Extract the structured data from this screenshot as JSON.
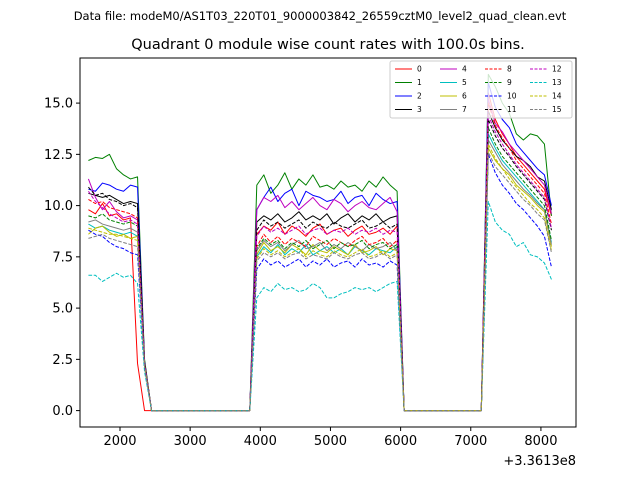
{
  "header": {
    "data_file": "Data file: modeM0/AS1T03_220T01_9000003842_26559cztM0_level2_quad_clean.evt"
  },
  "chart_data": {
    "type": "line",
    "title": "Quadrant 0 module wise count rates with 100.0s bins.",
    "xlabel": "",
    "ylabel": "",
    "x_offset_label": "+3.3613e8",
    "xlim": [
      1430,
      8500
    ],
    "ylim": [
      -0.8,
      17.2
    ],
    "xticks": [
      2000,
      3000,
      4000,
      5000,
      6000,
      7000,
      8000
    ],
    "xtick_labels": [
      "2000",
      "3000",
      "4000",
      "5000",
      "6000",
      "7000",
      "8000"
    ],
    "yticks": [
      0.0,
      2.5,
      5.0,
      7.5,
      10.0,
      12.5,
      15.0
    ],
    "ytick_labels": [
      "0.0",
      "2.5",
      "5.0",
      "7.5",
      "10.0",
      "12.5",
      "15.0"
    ],
    "grid": false,
    "legend_position": "top-right",
    "legend_columns": 4,
    "x": [
      1550,
      1650,
      1750,
      1850,
      1950,
      2050,
      2150,
      2250,
      2350,
      2450,
      2550,
      2650,
      2750,
      2850,
      2950,
      3050,
      3150,
      3250,
      3350,
      3450,
      3550,
      3650,
      3750,
      3850,
      3950,
      4050,
      4150,
      4250,
      4350,
      4450,
      4550,
      4650,
      4750,
      4850,
      4950,
      5050,
      5150,
      5250,
      5350,
      5450,
      5550,
      5650,
      5750,
      5850,
      5950,
      6050,
      6150,
      6250,
      6350,
      6450,
      6550,
      6650,
      6750,
      6850,
      6950,
      7050,
      7150,
      7250,
      7350,
      7450,
      7550,
      7650,
      7750,
      7850,
      7950,
      8050,
      8150
    ],
    "series": [
      {
        "name": "0",
        "color": "#ff0000",
        "dash": "solid",
        "values": [
          9.8,
          9.6,
          10.1,
          9.5,
          9.6,
          9.3,
          9.4,
          2.3,
          0,
          0,
          0,
          0,
          0,
          0,
          0,
          0,
          0,
          0,
          0,
          0,
          0,
          0,
          0,
          0,
          8.6,
          9.0,
          8.8,
          9.2,
          8.6,
          9.0,
          8.8,
          8.5,
          8.9,
          9.1,
          8.6,
          8.8,
          8.9,
          8.5,
          8.8,
          9.0,
          8.6,
          8.7,
          8.9,
          8.6,
          9.0,
          0,
          0,
          0,
          0,
          0,
          0,
          0,
          0,
          0,
          0,
          0,
          0,
          15.5,
          14.2,
          13.5,
          13.0,
          12.4,
          12.0,
          11.6,
          11.2,
          10.8,
          9.5
        ]
      },
      {
        "name": "1",
        "color": "#008000",
        "dash": "solid",
        "values": [
          12.2,
          12.35,
          12.3,
          12.5,
          11.8,
          11.5,
          11.3,
          11.4,
          2.5,
          0,
          0,
          0,
          0,
          0,
          0,
          0,
          0,
          0,
          0,
          0,
          0,
          0,
          0,
          0,
          11.0,
          11.5,
          10.6,
          11.0,
          11.6,
          10.8,
          11.3,
          11.0,
          11.5,
          10.9,
          11.0,
          10.8,
          11.2,
          10.9,
          11.0,
          10.7,
          11.2,
          10.9,
          11.4,
          11.0,
          10.7,
          0,
          0,
          0,
          0,
          0,
          0,
          0,
          0,
          0,
          0,
          0,
          0,
          16.4,
          15.8,
          15.0,
          14.5,
          13.5,
          13.2,
          13.5,
          13.4,
          13.0,
          9.5
        ]
      },
      {
        "name": "2",
        "color": "#0000ff",
        "dash": "solid",
        "values": [
          10.8,
          10.7,
          11.1,
          11.0,
          10.8,
          10.7,
          11.0,
          10.9,
          2.4,
          0,
          0,
          0,
          0,
          0,
          0,
          0,
          0,
          0,
          0,
          0,
          0,
          0,
          0,
          0,
          9.8,
          10.4,
          10.9,
          10.2,
          10.6,
          10.8,
          10.0,
          10.7,
          10.5,
          10.4,
          10.2,
          10.3,
          10.7,
          10.1,
          10.4,
          10.5,
          10.0,
          10.6,
          10.3,
          10.1,
          10.2,
          0,
          0,
          0,
          0,
          0,
          0,
          0,
          0,
          0,
          0,
          0,
          0,
          16.0,
          14.8,
          14.2,
          13.8,
          13.0,
          12.6,
          12.2,
          11.8,
          11.5,
          10.0
        ]
      },
      {
        "name": "3",
        "color": "#000000",
        "dash": "solid",
        "values": [
          10.6,
          10.5,
          10.4,
          10.5,
          10.3,
          10.1,
          10.2,
          10.1,
          2.4,
          0,
          0,
          0,
          0,
          0,
          0,
          0,
          0,
          0,
          0,
          0,
          0,
          0,
          0,
          0,
          9.2,
          9.5,
          9.3,
          9.6,
          9.2,
          9.4,
          9.7,
          9.3,
          9.5,
          9.3,
          9.6,
          9.1,
          9.4,
          9.6,
          9.2,
          9.5,
          9.3,
          9.6,
          9.2,
          9.4,
          9.5,
          0,
          0,
          0,
          0,
          0,
          0,
          0,
          0,
          0,
          0,
          0,
          0,
          14.6,
          13.8,
          13.2,
          12.8,
          12.4,
          12.2,
          11.9,
          11.4,
          11.2,
          9.8
        ]
      },
      {
        "name": "4",
        "color": "#bf00bf",
        "dash": "solid",
        "values": [
          11.3,
          10.4,
          9.8,
          10.2,
          9.7,
          9.4,
          9.5,
          9.3,
          2.3,
          0,
          0,
          0,
          0,
          0,
          0,
          0,
          0,
          0,
          0,
          0,
          0,
          0,
          0,
          0,
          9.8,
          10.4,
          10.2,
          10.5,
          9.9,
          10.2,
          9.8,
          10.1,
          10.4,
          10.0,
          9.8,
          10.3,
          10.1,
          9.7,
          10.0,
          10.2,
          9.9,
          9.8,
          10.1,
          10.4,
          9.7,
          0,
          0,
          0,
          0,
          0,
          0,
          0,
          0,
          0,
          0,
          0,
          0,
          15.2,
          14.0,
          13.6,
          13.0,
          12.6,
          12.2,
          11.8,
          11.4,
          11.0,
          9.6
        ]
      },
      {
        "name": "5",
        "color": "#00bfbf",
        "dash": "solid",
        "values": [
          9.1,
          8.9,
          9.0,
          8.8,
          8.7,
          8.6,
          8.7,
          8.5,
          2.2,
          0,
          0,
          0,
          0,
          0,
          0,
          0,
          0,
          0,
          0,
          0,
          0,
          0,
          0,
          0,
          7.5,
          8.0,
          7.7,
          8.1,
          7.6,
          7.9,
          7.7,
          8.1,
          7.6,
          7.8,
          8.0,
          7.7,
          7.9,
          7.6,
          8.0,
          7.8,
          7.6,
          7.9,
          7.8,
          7.7,
          8.0,
          0,
          0,
          0,
          0,
          0,
          0,
          0,
          0,
          0,
          0,
          0,
          0,
          13.5,
          12.8,
          12.2,
          11.8,
          11.4,
          11.0,
          10.6,
          10.2,
          9.8,
          8.2
        ]
      },
      {
        "name": "6",
        "color": "#bfbf00",
        "dash": "solid",
        "values": [
          8.6,
          8.9,
          9.0,
          8.7,
          8.5,
          8.6,
          8.4,
          8.5,
          2.2,
          0,
          0,
          0,
          0,
          0,
          0,
          0,
          0,
          0,
          0,
          0,
          0,
          0,
          0,
          0,
          7.6,
          8.2,
          7.8,
          8.0,
          7.7,
          8.1,
          7.9,
          7.6,
          8.1,
          7.8,
          7.7,
          8.0,
          7.8,
          7.6,
          8.1,
          7.7,
          7.8,
          8.0,
          7.6,
          7.9,
          7.8,
          0,
          0,
          0,
          0,
          0,
          0,
          0,
          0,
          0,
          0,
          0,
          0,
          12.8,
          12.2,
          11.8,
          11.5,
          11.0,
          10.7,
          10.4,
          10.0,
          9.7,
          8.0
        ]
      },
      {
        "name": "7",
        "color": "#808080",
        "dash": "solid",
        "values": [
          9.2,
          9.3,
          9.1,
          9.0,
          8.9,
          8.8,
          8.9,
          8.7,
          2.2,
          0,
          0,
          0,
          0,
          0,
          0,
          0,
          0,
          0,
          0,
          0,
          0,
          0,
          0,
          0,
          7.8,
          8.3,
          8.0,
          8.2,
          7.8,
          8.1,
          8.3,
          7.9,
          8.0,
          8.2,
          7.8,
          8.1,
          7.9,
          8.2,
          8.0,
          7.8,
          8.1,
          7.9,
          8.0,
          8.2,
          7.8,
          0,
          0,
          0,
          0,
          0,
          0,
          0,
          0,
          0,
          0,
          0,
          0,
          13.2,
          12.6,
          12.0,
          11.6,
          11.2,
          10.8,
          10.5,
          10.1,
          9.8,
          8.1
        ]
      },
      {
        "name": "8",
        "color": "#ff0000",
        "dash": "dashed",
        "values": [
          10.3,
          10.1,
          10.2,
          9.9,
          9.8,
          9.7,
          9.6,
          9.4,
          2.3,
          0,
          0,
          0,
          0,
          0,
          0,
          0,
          0,
          0,
          0,
          0,
          0,
          0,
          0,
          0,
          8.0,
          8.6,
          8.2,
          8.5,
          8.1,
          8.4,
          8.2,
          8.0,
          8.5,
          8.3,
          8.1,
          8.4,
          8.2,
          8.0,
          8.3,
          8.5,
          8.1,
          8.2,
          8.4,
          8.0,
          8.3,
          0,
          0,
          0,
          0,
          0,
          0,
          0,
          0,
          0,
          0,
          0,
          0,
          15.0,
          13.9,
          13.3,
          12.8,
          12.2,
          11.8,
          11.4,
          11.0,
          10.6,
          9.1
        ]
      },
      {
        "name": "9",
        "color": "#008000",
        "dash": "dashed",
        "values": [
          9.5,
          9.4,
          9.6,
          9.3,
          9.2,
          9.1,
          9.2,
          9.0,
          2.3,
          0,
          0,
          0,
          0,
          0,
          0,
          0,
          0,
          0,
          0,
          0,
          0,
          0,
          0,
          0,
          7.9,
          8.4,
          8.1,
          8.3,
          7.9,
          8.2,
          8.0,
          8.3,
          7.9,
          8.1,
          8.3,
          7.9,
          8.2,
          8.0,
          8.1,
          8.3,
          7.9,
          8.1,
          8.2,
          7.9,
          8.1,
          0,
          0,
          0,
          0,
          0,
          0,
          0,
          0,
          0,
          0,
          0,
          0,
          13.8,
          13.0,
          12.4,
          12.0,
          11.6,
          11.2,
          10.8,
          10.4,
          10.0,
          8.3
        ]
      },
      {
        "name": "10",
        "color": "#0000ff",
        "dash": "dashed",
        "values": [
          8.8,
          8.6,
          8.5,
          8.2,
          8.0,
          7.9,
          7.7,
          7.6,
          2.2,
          0,
          0,
          0,
          0,
          0,
          0,
          0,
          0,
          0,
          0,
          0,
          0,
          0,
          0,
          0,
          6.9,
          7.4,
          7.1,
          7.3,
          7.0,
          7.2,
          7.4,
          7.0,
          7.3,
          7.1,
          7.4,
          7.0,
          7.2,
          7.3,
          7.0,
          7.4,
          7.1,
          7.2,
          7.0,
          7.3,
          7.1,
          0,
          0,
          0,
          0,
          0,
          0,
          0,
          0,
          0,
          0,
          0,
          0,
          12.5,
          11.6,
          11.0,
          10.6,
          10.1,
          9.8,
          9.4,
          9.0,
          8.5,
          7.0
        ]
      },
      {
        "name": "11",
        "color": "#000000",
        "dash": "dashed",
        "values": [
          10.9,
          10.5,
          10.6,
          10.3,
          10.2,
          10.0,
          10.1,
          9.9,
          2.3,
          0,
          0,
          0,
          0,
          0,
          0,
          0,
          0,
          0,
          0,
          0,
          0,
          0,
          0,
          0,
          8.8,
          9.3,
          9.0,
          9.2,
          8.9,
          9.1,
          9.3,
          8.9,
          9.2,
          9.0,
          8.9,
          9.2,
          9.0,
          8.9,
          9.1,
          9.3,
          8.9,
          9.0,
          9.2,
          8.9,
          9.1,
          0,
          0,
          0,
          0,
          0,
          0,
          0,
          0,
          0,
          0,
          0,
          0,
          14.2,
          13.4,
          12.8,
          12.4,
          11.9,
          11.5,
          11.1,
          10.7,
          10.3,
          8.8
        ]
      },
      {
        "name": "12",
        "color": "#bf00bf",
        "dash": "dashed",
        "values": [
          10.7,
          10.2,
          9.9,
          9.6,
          9.4,
          9.2,
          9.3,
          9.1,
          2.3,
          0,
          0,
          0,
          0,
          0,
          0,
          0,
          0,
          0,
          0,
          0,
          0,
          0,
          0,
          0,
          8.5,
          9.0,
          8.7,
          8.9,
          8.6,
          8.8,
          9.0,
          8.6,
          8.8,
          8.9,
          8.6,
          8.8,
          8.7,
          8.9,
          8.6,
          8.8,
          8.7,
          8.9,
          8.6,
          8.8,
          8.7,
          0,
          0,
          0,
          0,
          0,
          0,
          0,
          0,
          0,
          0,
          0,
          0,
          14.4,
          13.6,
          13.0,
          12.5,
          12.0,
          11.6,
          11.2,
          10.8,
          10.4,
          8.9
        ]
      },
      {
        "name": "13",
        "color": "#00bfbf",
        "dash": "dashed",
        "values": [
          6.6,
          6.6,
          6.3,
          6.5,
          6.7,
          6.5,
          6.6,
          6.2,
          1.9,
          0,
          0,
          0,
          0,
          0,
          0,
          0,
          0,
          0,
          0,
          0,
          0,
          0,
          0,
          0,
          5.5,
          6.0,
          5.8,
          6.2,
          5.9,
          6.0,
          5.8,
          5.9,
          6.2,
          6.0,
          5.5,
          5.5,
          5.7,
          5.8,
          6.0,
          5.9,
          6.0,
          5.8,
          6.0,
          6.2,
          6.3,
          0,
          0,
          0,
          0,
          0,
          0,
          0,
          0,
          0,
          0,
          0,
          0,
          10.2,
          9.2,
          8.8,
          8.6,
          8.0,
          8.2,
          7.6,
          7.5,
          7.2,
          6.4
        ]
      },
      {
        "name": "14",
        "color": "#bfbf00",
        "dash": "dashed",
        "values": [
          8.9,
          8.8,
          8.7,
          8.6,
          8.6,
          8.5,
          8.4,
          8.3,
          2.2,
          0,
          0,
          0,
          0,
          0,
          0,
          0,
          0,
          0,
          0,
          0,
          0,
          0,
          0,
          0,
          7.4,
          7.9,
          7.6,
          7.8,
          7.5,
          7.7,
          7.9,
          7.5,
          7.8,
          7.6,
          7.5,
          7.8,
          7.6,
          7.5,
          7.7,
          7.9,
          7.5,
          7.6,
          7.8,
          7.5,
          7.7,
          0,
          0,
          0,
          0,
          0,
          0,
          0,
          0,
          0,
          0,
          0,
          0,
          13.0,
          12.3,
          11.8,
          11.3,
          10.9,
          10.5,
          10.1,
          9.8,
          9.4,
          7.8
        ]
      },
      {
        "name": "15",
        "color": "#808080",
        "dash": "dashed",
        "values": [
          8.4,
          8.5,
          8.6,
          8.4,
          8.3,
          8.2,
          8.1,
          8.0,
          2.1,
          0,
          0,
          0,
          0,
          0,
          0,
          0,
          0,
          0,
          0,
          0,
          0,
          0,
          0,
          0,
          7.3,
          7.7,
          7.5,
          7.7,
          7.4,
          7.6,
          7.7,
          7.4,
          7.6,
          7.5,
          7.4,
          7.7,
          7.5,
          7.4,
          7.6,
          7.7,
          7.4,
          7.5,
          7.7,
          7.4,
          7.6,
          0,
          0,
          0,
          0,
          0,
          0,
          0,
          0,
          0,
          0,
          0,
          0,
          12.6,
          11.9,
          11.5,
          11.1,
          10.7,
          10.3,
          10.0,
          9.6,
          9.3,
          7.7
        ]
      }
    ]
  }
}
